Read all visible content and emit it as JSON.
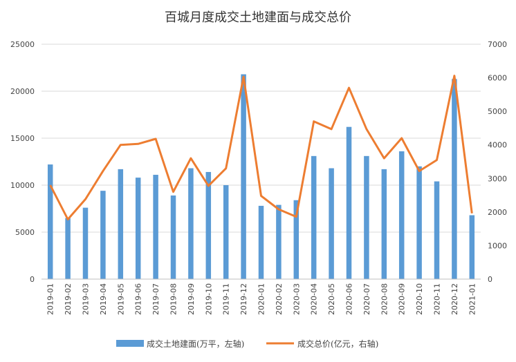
{
  "chart_data": {
    "type": "bar",
    "title": "百城月度成交土地建面与成交总价",
    "categories": [
      "2019-01",
      "2019-02",
      "2019-03",
      "2019-04",
      "2019-05",
      "2019-06",
      "2019-07",
      "2019-08",
      "2019-09",
      "2019-10",
      "2019-11",
      "2019-12",
      "2020-01",
      "2020-02",
      "2020-03",
      "2020-04",
      "2020-05",
      "2020-06",
      "2020-07",
      "2020-08",
      "2020-09",
      "2020-10",
      "2020-11",
      "2020-12",
      "2021-01"
    ],
    "ylim_left": [
      0,
      25000
    ],
    "yticks_left": [
      "0",
      "5000",
      "10000",
      "15000",
      "20000",
      "25000"
    ],
    "ylim_right": [
      0,
      7000
    ],
    "yticks_right": [
      "0",
      "1000",
      "2000",
      "3000",
      "4000",
      "5000",
      "6000",
      "7000"
    ],
    "grid": true,
    "legend_position": "bottom",
    "series": [
      {
        "name": "成交土地建面(万平，左轴)",
        "type": "bar",
        "axis": "left",
        "color": "#5B9BD5",
        "values": [
          12200,
          6500,
          7600,
          9400,
          11700,
          10800,
          11100,
          8900,
          11800,
          11400,
          10000,
          21800,
          7800,
          7900,
          8400,
          13100,
          11800,
          16200,
          13100,
          11700,
          13600,
          12000,
          10400,
          21300,
          6800
        ]
      },
      {
        "name": "成交总价(亿元，右轴)",
        "type": "line",
        "axis": "right",
        "color": "#ED7D31",
        "values": [
          2800,
          1780,
          2380,
          3220,
          4000,
          4030,
          4180,
          2600,
          3600,
          2780,
          3300,
          6030,
          2480,
          2080,
          1860,
          4700,
          4470,
          5700,
          4470,
          3600,
          4200,
          3220,
          3550,
          6060,
          1960
        ]
      }
    ]
  }
}
